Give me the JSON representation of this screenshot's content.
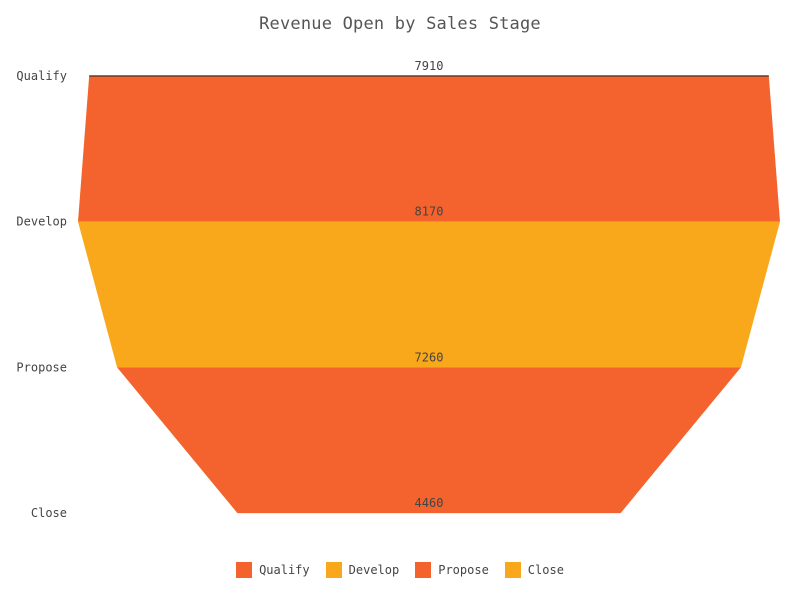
{
  "chart_data": {
    "type": "funnel",
    "title": "Revenue Open by Sales Stage",
    "categories": [
      "Qualify",
      "Develop",
      "Propose",
      "Close"
    ],
    "values": [
      7910,
      8170,
      7260,
      4460
    ],
    "value_labels": [
      "7910",
      "8170",
      "7260",
      "4460"
    ],
    "colors": [
      "#F4632D",
      "#F9A71B",
      "#F4632D",
      "#F9A71B"
    ],
    "legend": {
      "position": "bottom",
      "entries": [
        "Qualify",
        "Develop",
        "Propose",
        "Close"
      ]
    },
    "grid": false
  }
}
